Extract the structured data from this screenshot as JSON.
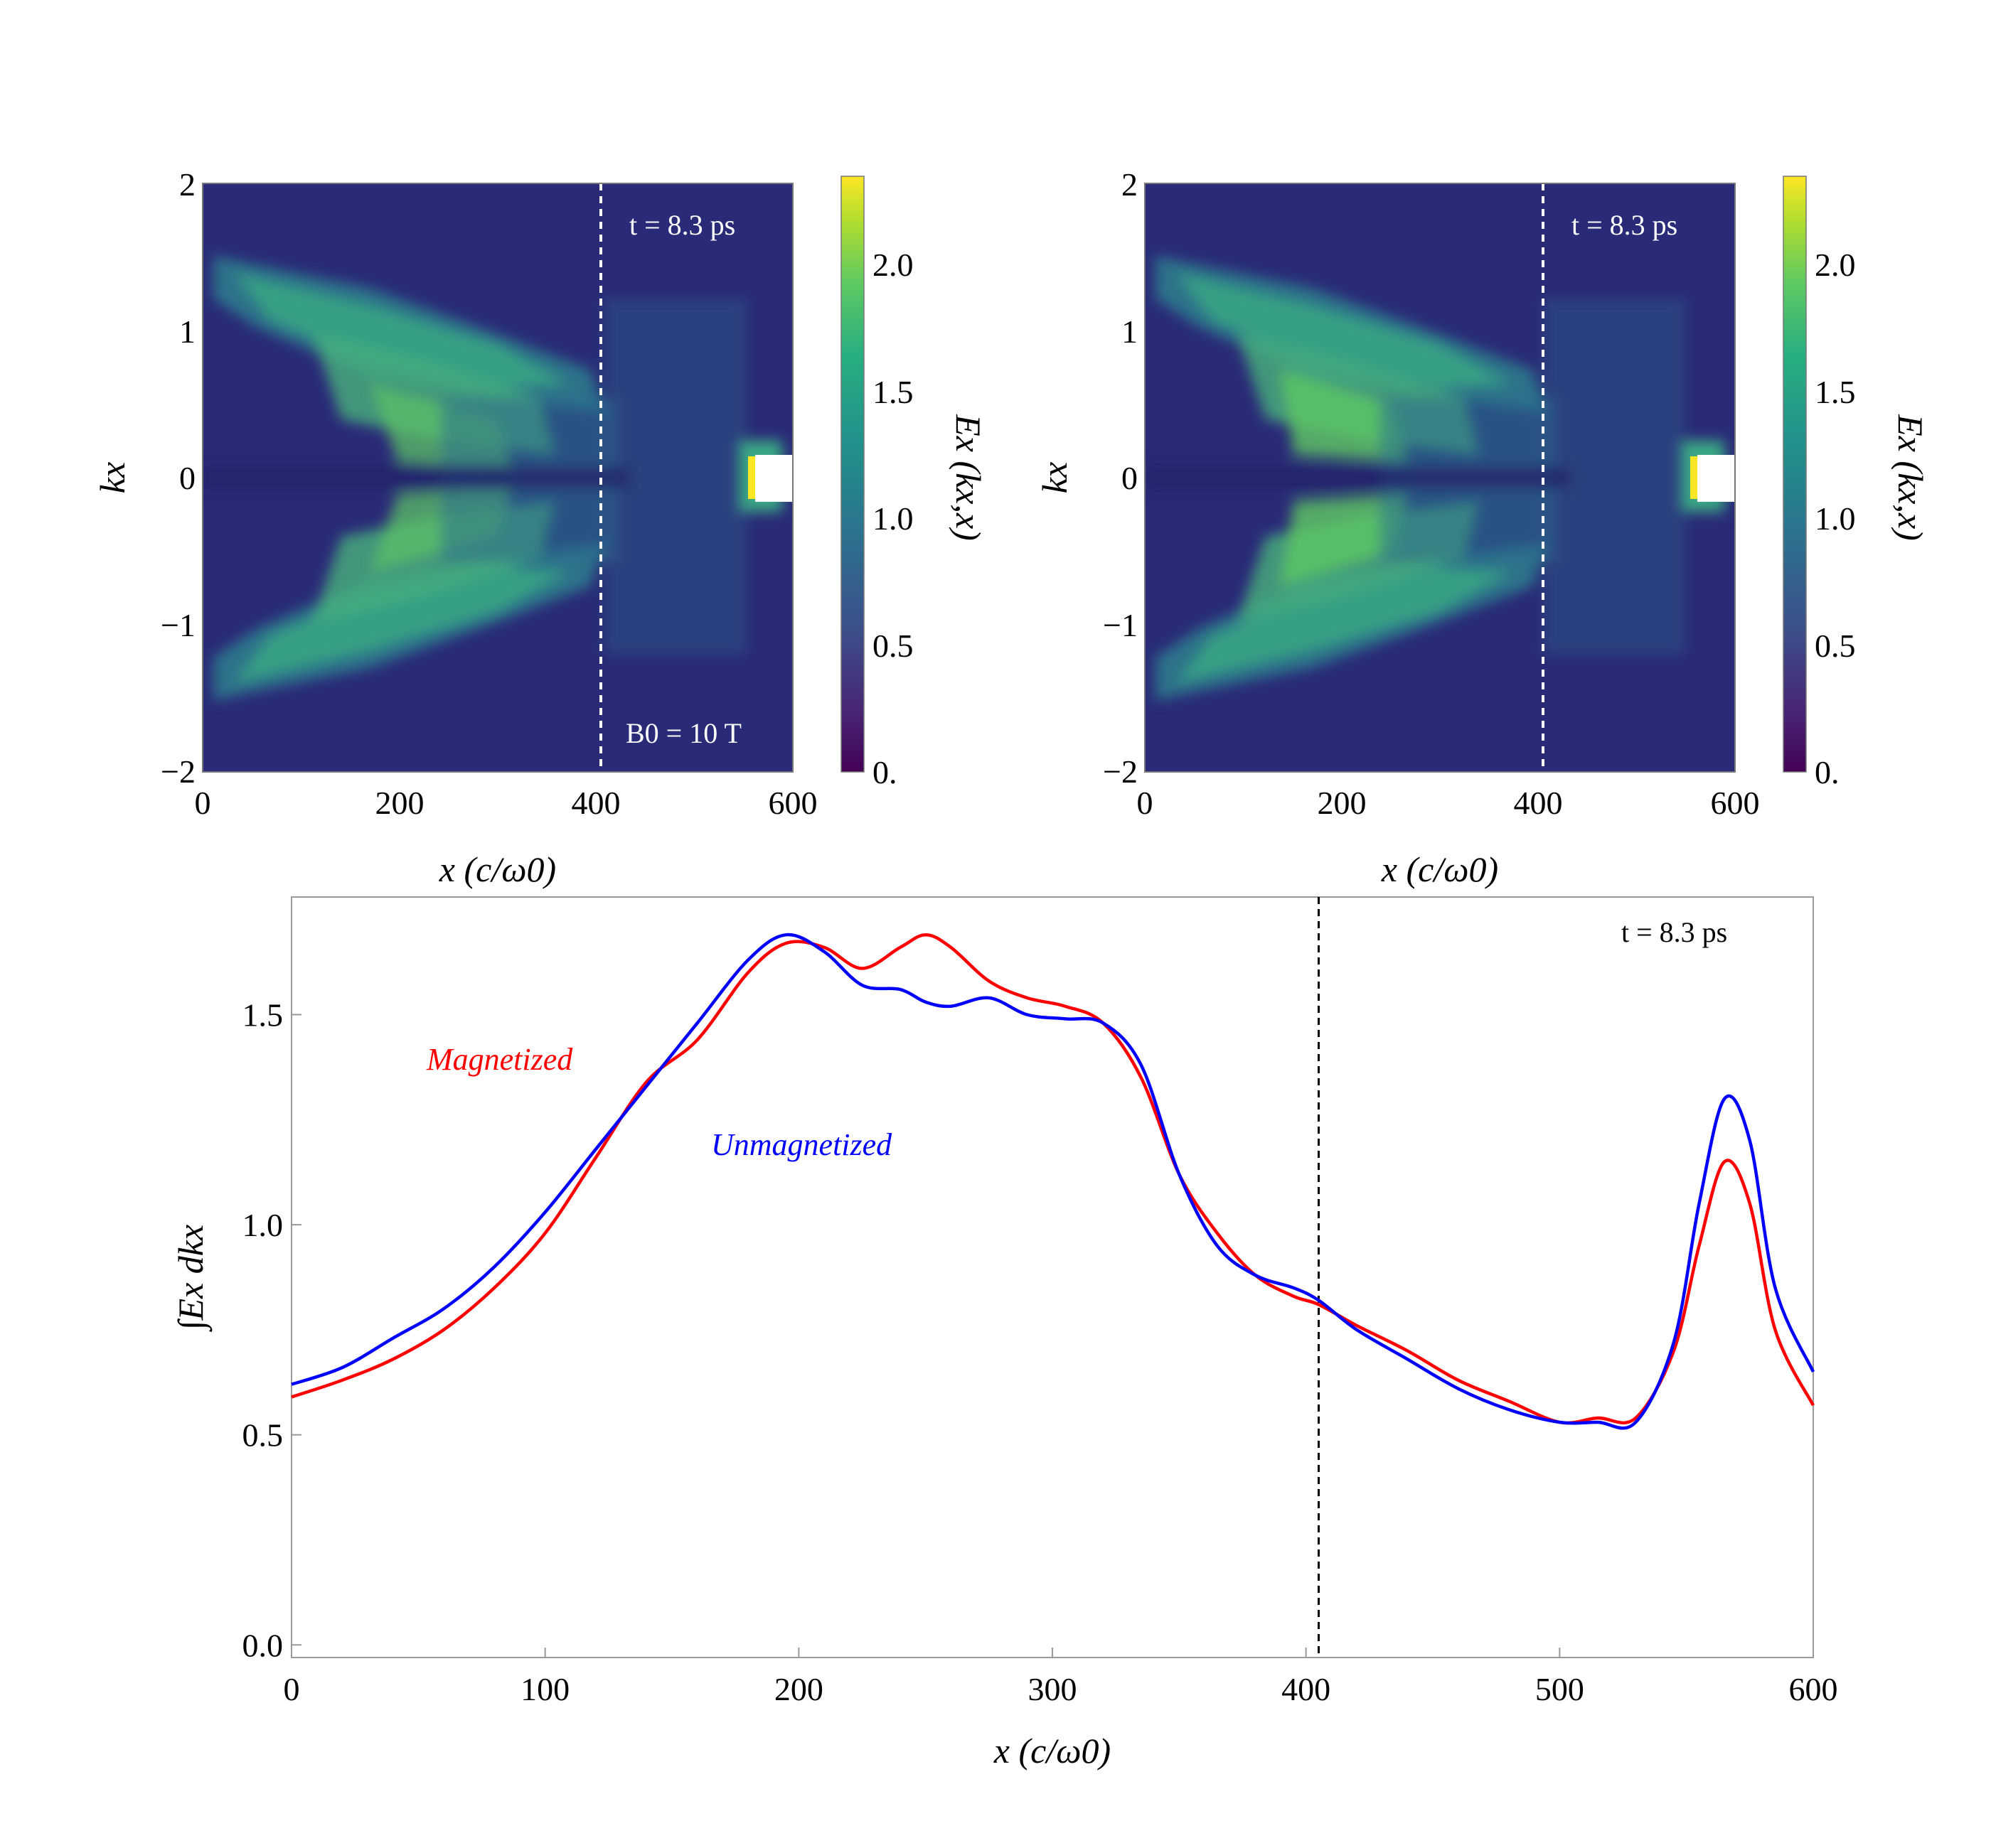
{
  "chart_data": [
    {
      "type": "heatmap",
      "panel": "top-left",
      "xlabel": "x (c/ω0)",
      "ylabel": "kx",
      "colorbar_label": "Ex (kx,x)",
      "xlim": [
        0,
        600
      ],
      "ylim": [
        -2,
        2
      ],
      "clim": [
        0,
        2.35
      ],
      "x_ticks": [
        "0",
        "200",
        "400",
        "600"
      ],
      "y_ticks": [
        "−2",
        "−1",
        "0",
        "1",
        "2"
      ],
      "colorbar_ticks": [
        "0.",
        "0.5",
        "1.0",
        "1.5",
        "2.0"
      ],
      "colorbar_tick_values": [
        0,
        0.5,
        1.0,
        1.5,
        2.0
      ],
      "dashed_line_x": 405,
      "annotation_time": "t = 8.3 ps",
      "annotation_field": "B0 = 10 T",
      "colormap": [
        "#440154",
        "#3b528b",
        "#21918c",
        "#5ec962",
        "#fde725"
      ]
    },
    {
      "type": "heatmap",
      "panel": "top-right",
      "xlabel": "x (c/ω0)",
      "ylabel": "kx",
      "colorbar_label": "Ex (kx,x)",
      "xlim": [
        0,
        600
      ],
      "ylim": [
        -2,
        2
      ],
      "clim": [
        0,
        2.35
      ],
      "x_ticks": [
        "0",
        "200",
        "400",
        "600"
      ],
      "y_ticks": [
        "−2",
        "−1",
        "0",
        "1",
        "2"
      ],
      "colorbar_ticks": [
        "0.",
        "0.5",
        "1.0",
        "1.5",
        "2.0"
      ],
      "colorbar_tick_values": [
        0,
        0.5,
        1.0,
        1.5,
        2.0
      ],
      "dashed_line_x": 405,
      "annotation_time": "t = 8.3 ps"
    },
    {
      "type": "line",
      "panel": "bottom",
      "xlabel": "x (c/ω0)",
      "ylabel": "∫Ex dkx",
      "xlim": [
        0,
        600
      ],
      "ylim": [
        -0.03,
        1.78
      ],
      "x_ticks": [
        0,
        100,
        200,
        300,
        400,
        500,
        600
      ],
      "y_ticks": [
        0.0,
        0.5,
        1.0,
        1.5
      ],
      "y_tick_labels": [
        "0.0",
        "0.5",
        "1.0",
        "1.5"
      ],
      "dashed_line_x": 405,
      "annotation_time": "t = 8.3 ps",
      "x": [
        0,
        20,
        40,
        60,
        80,
        100,
        120,
        140,
        160,
        180,
        195,
        210,
        225,
        240,
        250,
        260,
        275,
        290,
        305,
        320,
        335,
        350,
        365,
        380,
        395,
        405,
        420,
        440,
        460,
        480,
        500,
        515,
        530,
        545,
        555,
        565,
        575,
        585,
        600
      ],
      "series": [
        {
          "name": "Magnetized",
          "color": "#ff0000",
          "values": [
            0.59,
            0.63,
            0.68,
            0.75,
            0.85,
            0.98,
            1.16,
            1.34,
            1.44,
            1.6,
            1.67,
            1.66,
            1.61,
            1.66,
            1.69,
            1.66,
            1.58,
            1.54,
            1.52,
            1.48,
            1.35,
            1.12,
            0.98,
            0.88,
            0.83,
            0.81,
            0.76,
            0.7,
            0.63,
            0.58,
            0.53,
            0.54,
            0.54,
            0.7,
            0.95,
            1.15,
            1.05,
            0.75,
            0.57
          ]
        },
        {
          "name": "Unmagnetized",
          "color": "#0000ff",
          "values": [
            0.62,
            0.66,
            0.73,
            0.8,
            0.9,
            1.03,
            1.18,
            1.33,
            1.48,
            1.63,
            1.69,
            1.65,
            1.57,
            1.56,
            1.53,
            1.52,
            1.54,
            1.5,
            1.49,
            1.48,
            1.38,
            1.12,
            0.95,
            0.88,
            0.85,
            0.82,
            0.75,
            0.68,
            0.61,
            0.56,
            0.53,
            0.53,
            0.53,
            0.72,
            1.05,
            1.3,
            1.2,
            0.85,
            0.65
          ]
        }
      ]
    }
  ]
}
